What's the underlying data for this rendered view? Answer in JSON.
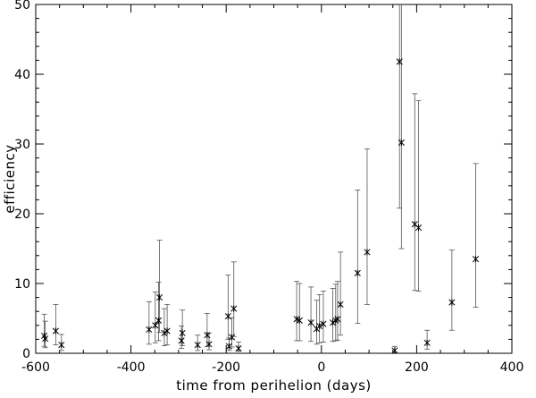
{
  "chart_data": {
    "type": "scatter",
    "xlabel": "time from perihelion (days)",
    "ylabel": "efficiency",
    "xlim": [
      -600,
      400
    ],
    "ylim": [
      0,
      50
    ],
    "xticks": [
      -600,
      -400,
      -200,
      0,
      200,
      400
    ],
    "yticks": [
      0,
      10,
      20,
      30,
      40,
      50
    ],
    "x_minor_step": 50,
    "y_minor_step": 2,
    "grid": false,
    "marker": "x",
    "error_bars": true,
    "points": [
      {
        "x": -582,
        "y": 2.5,
        "err_low": 1.0,
        "err_high": 5.6
      },
      {
        "x": -580,
        "y": 2.1,
        "err_low": 0.8,
        "err_high": 4.6
      },
      {
        "x": -558,
        "y": 3.2,
        "err_low": 1.2,
        "err_high": 7.0
      },
      {
        "x": -546,
        "y": 1.2,
        "err_low": 0.4,
        "err_high": 2.7
      },
      {
        "x": -362,
        "y": 3.4,
        "err_low": 1.3,
        "err_high": 7.4
      },
      {
        "x": -349,
        "y": 4.0,
        "err_low": 1.5,
        "err_high": 8.8
      },
      {
        "x": -342,
        "y": 4.7,
        "err_low": 1.8,
        "err_high": 10.2
      },
      {
        "x": -340,
        "y": 8.0,
        "err_low": 3.0,
        "err_high": 16.2
      },
      {
        "x": -330,
        "y": 2.9,
        "err_low": 1.1,
        "err_high": 6.4
      },
      {
        "x": -324,
        "y": 3.2,
        "err_low": 1.2,
        "err_high": 7.0
      },
      {
        "x": -294,
        "y": 1.8,
        "err_low": 0.7,
        "err_high": 3.9
      },
      {
        "x": -292,
        "y": 2.9,
        "err_low": 1.1,
        "err_high": 6.2
      },
      {
        "x": -260,
        "y": 1.2,
        "err_low": 0.4,
        "err_high": 2.6
      },
      {
        "x": -240,
        "y": 2.6,
        "err_low": 1.0,
        "err_high": 5.7
      },
      {
        "x": -236,
        "y": 1.3,
        "err_low": 0.5,
        "err_high": 2.9
      },
      {
        "x": -196,
        "y": 5.3,
        "err_low": 2.0,
        "err_high": 11.2
      },
      {
        "x": -194,
        "y": 1.0,
        "err_low": 0.4,
        "err_high": 2.2
      },
      {
        "x": -188,
        "y": 2.3,
        "err_low": 0.9,
        "err_high": 5.1
      },
      {
        "x": -184,
        "y": 6.4,
        "err_low": 2.4,
        "err_high": 13.1
      },
      {
        "x": -174,
        "y": 0.7,
        "err_low": 0.3,
        "err_high": 1.6
      },
      {
        "x": -52,
        "y": 4.9,
        "err_low": 1.8,
        "err_high": 10.3
      },
      {
        "x": -46,
        "y": 4.7,
        "err_low": 1.8,
        "err_high": 10.0
      },
      {
        "x": -22,
        "y": 4.4,
        "err_low": 1.7,
        "err_high": 9.5
      },
      {
        "x": -10,
        "y": 3.5,
        "err_low": 1.3,
        "err_high": 7.6
      },
      {
        "x": -4,
        "y": 3.9,
        "err_low": 1.5,
        "err_high": 8.4
      },
      {
        "x": 4,
        "y": 4.2,
        "err_low": 1.6,
        "err_high": 8.9
      },
      {
        "x": 24,
        "y": 4.4,
        "err_low": 1.7,
        "err_high": 9.3
      },
      {
        "x": 30,
        "y": 4.7,
        "err_low": 1.8,
        "err_high": 9.9
      },
      {
        "x": 34,
        "y": 4.9,
        "err_low": 1.9,
        "err_high": 10.3
      },
      {
        "x": 40,
        "y": 7.0,
        "err_low": 2.6,
        "err_high": 14.5
      },
      {
        "x": 76,
        "y": 11.5,
        "err_low": 4.3,
        "err_high": 23.4
      },
      {
        "x": 96,
        "y": 14.5,
        "err_low": 7.0,
        "err_high": 29.3
      },
      {
        "x": 154,
        "y": 0.4,
        "err_low": 0.1,
        "err_high": 1.0
      },
      {
        "x": 164,
        "y": 41.8,
        "err_low": 20.8,
        "err_high": 50.0
      },
      {
        "x": 168,
        "y": 30.2,
        "err_low": 15.0,
        "err_high": 50.0
      },
      {
        "x": 196,
        "y": 18.5,
        "err_low": 9.0,
        "err_high": 37.2
      },
      {
        "x": 204,
        "y": 18.0,
        "err_low": 8.9,
        "err_high": 36.2
      },
      {
        "x": 222,
        "y": 1.5,
        "err_low": 0.6,
        "err_high": 3.3
      },
      {
        "x": 274,
        "y": 7.3,
        "err_low": 3.3,
        "err_high": 14.8
      },
      {
        "x": 324,
        "y": 13.5,
        "err_low": 6.6,
        "err_high": 27.2
      }
    ]
  }
}
